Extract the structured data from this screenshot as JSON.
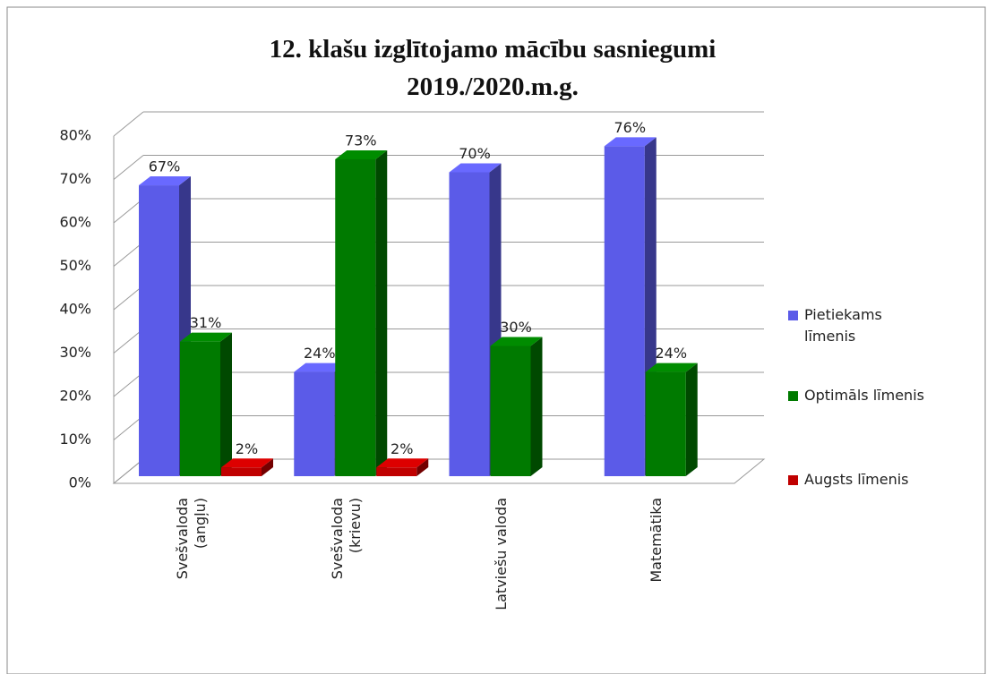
{
  "chart_data": {
    "type": "bar3d",
    "title": "12. klašu izglītojamo mācību sasniegumi 2019./2020.m.g.",
    "categories": [
      "Svešvaloda\n(angļu)",
      "Svešvaloda\n(krievu)",
      "Latviešu valoda",
      "Matemātika"
    ],
    "series": [
      {
        "name": "Pietiekams līmenis",
        "color": "#5b5be8",
        "values": [
          67,
          24,
          70,
          76
        ],
        "value_labels": [
          "67%",
          "24%",
          "70%",
          "76%"
        ]
      },
      {
        "name": "Optimāls līmenis",
        "color": "#007a00",
        "values": [
          31,
          73,
          30,
          24
        ],
        "value_labels": [
          "31%",
          "73%",
          "30%",
          "24%"
        ]
      },
      {
        "name": "Augsts līmenis",
        "color": "#c00000",
        "values": [
          2,
          2,
          null,
          null
        ],
        "value_labels": [
          "2%",
          "2%",
          null,
          null
        ]
      }
    ],
    "ylim": [
      0,
      80
    ],
    "yticks": [
      {
        "value": 0,
        "label": "0%"
      },
      {
        "value": 10,
        "label": "10%"
      },
      {
        "value": 20,
        "label": "20%"
      },
      {
        "value": 30,
        "label": "30%"
      },
      {
        "value": 40,
        "label": "40%"
      },
      {
        "value": 50,
        "label": "50%"
      },
      {
        "value": 60,
        "label": "60%"
      },
      {
        "value": 70,
        "label": "70%"
      },
      {
        "value": 80,
        "label": "80%"
      }
    ],
    "grid": true,
    "legend": "right"
  }
}
